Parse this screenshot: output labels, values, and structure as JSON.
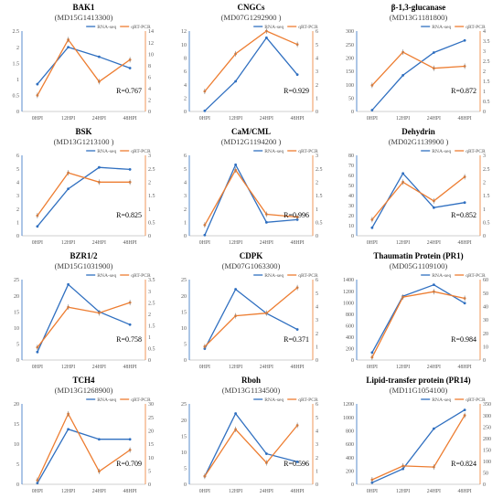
{
  "colors": {
    "rna": "#2f6fc0",
    "qrt": "#ed7d31",
    "axis": "#bfbfbf",
    "label": "#595959",
    "title": "#000000",
    "subtitle": "#404040"
  },
  "chart_data": [
    {
      "type": "line",
      "title": "BAK1",
      "subtitle": "(MD15G1413300)",
      "categories": [
        "0HPI",
        "12HPI",
        "24HPI",
        "48HPI"
      ],
      "ylim_left": [
        0,
        2.5
      ],
      "yticks_left": [
        "0",
        "0.5",
        "1",
        "1.5",
        "2",
        "2.5"
      ],
      "ylim_right": [
        0,
        14
      ],
      "yticks_right": [
        "0",
        "2",
        "4",
        "6",
        "8",
        "10",
        "12",
        "14"
      ],
      "series": [
        {
          "name": "RNA-seq",
          "axis": "left",
          "values": [
            0.85,
            2.0,
            1.7,
            1.35
          ]
        },
        {
          "name": "qRT-PCR",
          "axis": "right",
          "values": [
            2.8,
            12.5,
            5.2,
            9.0
          ]
        }
      ],
      "r_label": "R=0.767",
      "legend": "top-right"
    },
    {
      "type": "line",
      "title": "CNGCs",
      "subtitle": "(MD07G1292900  )",
      "categories": [
        "0HPI",
        "12HPI",
        "24HPI",
        "48HPI"
      ],
      "ylim_left": [
        0,
        12
      ],
      "yticks_left": [
        "0",
        "2",
        "4",
        "6",
        "8",
        "10",
        "12"
      ],
      "ylim_right": [
        0,
        6
      ],
      "yticks_right": [
        "0",
        "1",
        "2",
        "3",
        "4",
        "5",
        "6"
      ],
      "series": [
        {
          "name": "RNA-seq",
          "axis": "left",
          "values": [
            0.1,
            4.5,
            11.0,
            5.5
          ]
        },
        {
          "name": "qRT-PCR",
          "axis": "right",
          "values": [
            1.5,
            4.3,
            6.0,
            5.0
          ]
        }
      ],
      "r_label": "R=0.929",
      "legend": "top-right"
    },
    {
      "type": "line",
      "title": "β-1,3-glucanase",
      "subtitle": "(MD13G1181800)",
      "categories": [
        "0HPI",
        "12HPI",
        "24HPI",
        "48HPI"
      ],
      "ylim_left": [
        0,
        300
      ],
      "yticks_left": [
        "0",
        "50",
        "100",
        "150",
        "200",
        "250",
        "300"
      ],
      "ylim_right": [
        0,
        4
      ],
      "yticks_right": [
        "0",
        "0.5",
        "1",
        "1.5",
        "2",
        "2.5",
        "3",
        "3.5",
        "4"
      ],
      "series": [
        {
          "name": "RNA-seq",
          "axis": "left",
          "values": [
            5,
            135,
            220,
            265
          ]
        },
        {
          "name": "qRT-PCR",
          "axis": "right",
          "values": [
            1.3,
            2.95,
            2.15,
            2.25
          ]
        }
      ],
      "r_label": "R=0.872",
      "legend": "top-right"
    },
    {
      "type": "line",
      "title": "BSK",
      "subtitle": "(MD13G1213100 )",
      "categories": [
        "0HPI",
        "12HPI",
        "24HPI",
        "48HPI"
      ],
      "ylim_left": [
        0,
        6
      ],
      "yticks_left": [
        "0",
        "1",
        "2",
        "3",
        "4",
        "5",
        "6"
      ],
      "ylim_right": [
        0,
        3
      ],
      "yticks_right": [
        "0",
        "0.5",
        "1",
        "1.5",
        "2",
        "2.5",
        "3"
      ],
      "series": [
        {
          "name": "RNA-seq",
          "axis": "left",
          "values": [
            0.7,
            3.5,
            5.1,
            4.95
          ]
        },
        {
          "name": "qRT-PCR",
          "axis": "right",
          "values": [
            0.75,
            2.35,
            2.0,
            2.0
          ]
        }
      ],
      "r_label": "R=0.825",
      "legend": "top-right"
    },
    {
      "type": "line",
      "title": "CaM/CML",
      "subtitle": "(MD12G1194200  )",
      "categories": [
        "0HPI",
        "12HPI",
        "24HPI",
        "48HPI"
      ],
      "ylim_left": [
        0,
        6
      ],
      "yticks_left": [
        "0",
        "1",
        "2",
        "3",
        "4",
        "5",
        "6"
      ],
      "ylim_right": [
        0,
        3
      ],
      "yticks_right": [
        "0",
        "0.5",
        "1",
        "1.5",
        "2",
        "2.5",
        "3"
      ],
      "series": [
        {
          "name": "RNA-seq",
          "axis": "left",
          "values": [
            0.05,
            5.3,
            1.0,
            1.2
          ]
        },
        {
          "name": "qRT-PCR",
          "axis": "right",
          "values": [
            0.4,
            2.45,
            0.8,
            0.7
          ]
        }
      ],
      "r_label": "R=0.996",
      "legend": "top-right"
    },
    {
      "type": "line",
      "title": "Dehydrin",
      "subtitle": "(MD02G1139900 )",
      "categories": [
        "0HPI",
        "12HPI",
        "24HPI",
        "48HPI"
      ],
      "ylim_left": [
        0,
        80
      ],
      "yticks_left": [
        "0",
        "10",
        "20",
        "30",
        "40",
        "50",
        "60",
        "70",
        "80"
      ],
      "ylim_right": [
        0,
        3
      ],
      "yticks_right": [
        "0",
        "0.5",
        "1",
        "1.5",
        "2",
        "2.5",
        "3"
      ],
      "series": [
        {
          "name": "RNA-seq",
          "axis": "left",
          "values": [
            8,
            62,
            28,
            33
          ]
        },
        {
          "name": "qRT-PCR",
          "axis": "right",
          "values": [
            0.6,
            2.0,
            1.3,
            2.2
          ]
        }
      ],
      "r_label": "R=0.852",
      "legend": "top-right"
    },
    {
      "type": "line",
      "title": "BZR1/2",
      "subtitle": "(MD15G1031900)",
      "categories": [
        "0HPI",
        "12HPI",
        "24HPI",
        "48HPI"
      ],
      "ylim_left": [
        0,
        25
      ],
      "yticks_left": [
        "0",
        "5",
        "10",
        "15",
        "20",
        "25"
      ],
      "ylim_right": [
        0,
        3.5
      ],
      "yticks_right": [
        "0",
        "0.5",
        "1",
        "1.5",
        "2",
        "2.5",
        "3",
        "3.5"
      ],
      "series": [
        {
          "name": "RNA-seq",
          "axis": "left",
          "values": [
            2.5,
            23.5,
            15.0,
            11.0
          ]
        },
        {
          "name": "qRT-PCR",
          "axis": "right",
          "values": [
            0.55,
            2.3,
            2.05,
            2.5
          ]
        }
      ],
      "r_label": "R=0.758",
      "legend": "top-right"
    },
    {
      "type": "line",
      "title": "CDPK",
      "subtitle": "(MD07G1063300)",
      "categories": [
        "0HPI",
        "12HPI",
        "24HPI",
        "48HPI"
      ],
      "ylim_left": [
        0,
        25
      ],
      "yticks_left": [
        "0",
        "5",
        "10",
        "15",
        "20",
        "25"
      ],
      "ylim_right": [
        0,
        6
      ],
      "yticks_right": [
        "0",
        "1",
        "2",
        "3",
        "4",
        "5",
        "6"
      ],
      "series": [
        {
          "name": "RNA-seq",
          "axis": "left",
          "values": [
            3.5,
            22.0,
            14.5,
            9.5
          ]
        },
        {
          "name": "qRT-PCR",
          "axis": "right",
          "values": [
            1.0,
            3.3,
            3.5,
            5.4
          ]
        }
      ],
      "r_label": "R=0.371",
      "legend": "top-right"
    },
    {
      "type": "line",
      "title": "Thaumatin Protein (PR1)",
      "subtitle": "(MD05G1109100)",
      "categories": [
        "0HPI",
        "12HPI",
        "24HPI",
        "48HPI"
      ],
      "ylim_left": [
        0,
        1400
      ],
      "yticks_left": [
        "0",
        "200",
        "400",
        "600",
        "800",
        "1000",
        "1200",
        "1400"
      ],
      "ylim_right": [
        0,
        60
      ],
      "yticks_right": [
        "0",
        "10",
        "20",
        "30",
        "40",
        "50",
        "60"
      ],
      "series": [
        {
          "name": "RNA-seq",
          "axis": "left",
          "values": [
            130,
            1110,
            1310,
            990
          ]
        },
        {
          "name": "qRT-PCR",
          "axis": "right",
          "values": [
            2,
            47,
            51,
            46
          ]
        }
      ],
      "r_label": "R=0.984",
      "legend": "top-right"
    },
    {
      "type": "line",
      "title": "TCH4",
      "subtitle": "(MD13G1268900)",
      "categories": [
        "0HPI",
        "12HPI",
        "24HPI",
        "48HPI"
      ],
      "ylim_left": [
        0,
        20
      ],
      "yticks_left": [
        "0",
        "5",
        "10",
        "15",
        "20"
      ],
      "ylim_right": [
        0,
        30
      ],
      "yticks_right": [
        "0",
        "5",
        "10",
        "15",
        "20",
        "25",
        "30"
      ],
      "series": [
        {
          "name": "RNA-seq",
          "axis": "left",
          "values": [
            0.3,
            13.7,
            11.2,
            11.2
          ]
        },
        {
          "name": "qRT-PCR",
          "axis": "right",
          "values": [
            1.5,
            26.3,
            4.8,
            12.8
          ]
        }
      ],
      "r_label": "R=0.709",
      "legend": "top-right"
    },
    {
      "type": "line",
      "title": "Rboh",
      "subtitle": "(MD13G1134500)",
      "categories": [
        "0HPI",
        "12HPI",
        "24HPI",
        "48HPI"
      ],
      "ylim_left": [
        0,
        25
      ],
      "yticks_left": [
        "0",
        "5",
        "10",
        "15",
        "20",
        "25"
      ],
      "ylim_right": [
        0,
        6
      ],
      "yticks_right": [
        "0",
        "1",
        "2",
        "3",
        "4",
        "5",
        "6"
      ],
      "series": [
        {
          "name": "RNA-seq",
          "axis": "left",
          "values": [
            2.5,
            22.0,
            9.5,
            7.0
          ]
        },
        {
          "name": "qRT-PCR",
          "axis": "right",
          "values": [
            0.6,
            4.1,
            1.6,
            4.4
          ]
        }
      ],
      "r_label": "R=0.596",
      "legend": "top-right"
    },
    {
      "type": "line",
      "title": "Lipid-transfer protein (PR14)",
      "subtitle": "(MD11G1054100)",
      "categories": [
        "0HPI",
        "12HPI",
        "24HPI",
        "48HPI"
      ],
      "ylim_left": [
        0,
        1200
      ],
      "yticks_left": [
        "0",
        "200",
        "400",
        "600",
        "800",
        "1000",
        "1200"
      ],
      "ylim_right": [
        0,
        350
      ],
      "yticks_right": [
        "0",
        "50",
        "100",
        "150",
        "200",
        "250",
        "300",
        "350"
      ],
      "series": [
        {
          "name": "RNA-seq",
          "axis": "left",
          "values": [
            25,
            230,
            830,
            1110
          ]
        },
        {
          "name": "qRT-PCR",
          "axis": "right",
          "values": [
            20,
            80,
            75,
            300
          ]
        }
      ],
      "r_label": "R=0.824",
      "legend": "top-right"
    }
  ]
}
